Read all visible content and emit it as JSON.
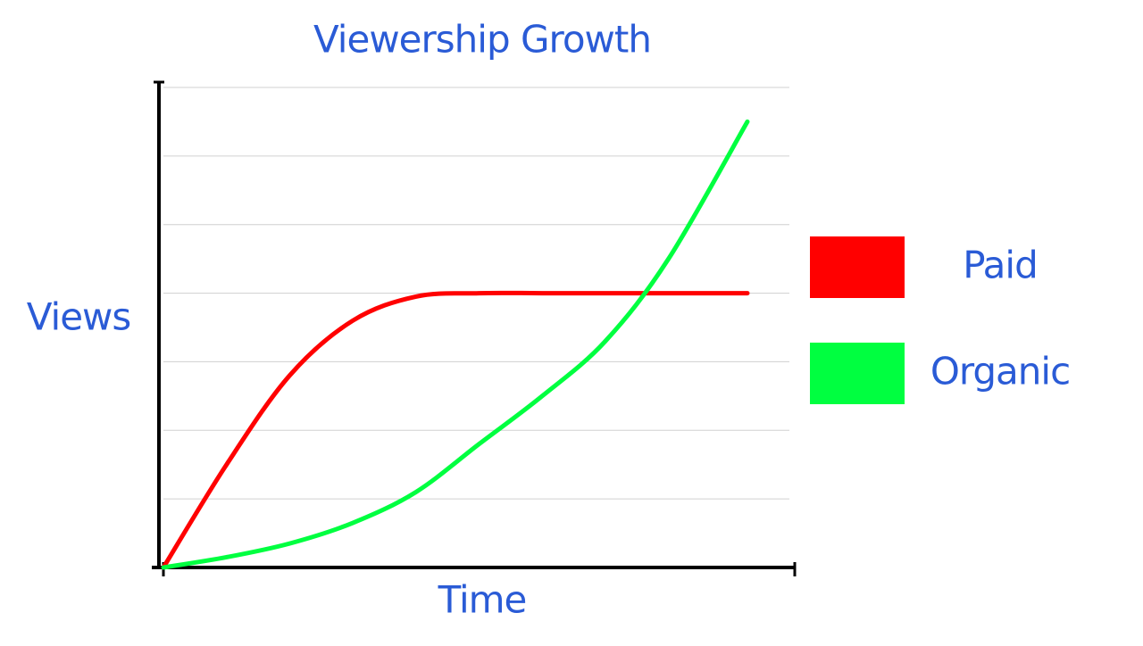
{
  "chart_data": {
    "type": "line",
    "title": "Viewership Growth",
    "x_label": "Time",
    "y_label": "Views",
    "x": [
      0,
      1,
      2,
      3,
      4,
      5,
      6,
      7,
      8,
      9.25
    ],
    "xlim": [
      0,
      10
    ],
    "ylim": [
      0,
      7
    ],
    "yticks": [
      1,
      2,
      3,
      4,
      5,
      6,
      7
    ],
    "grid": true,
    "legend": "right",
    "series": [
      {
        "name": "Paid",
        "color": "#ff0000",
        "values": [
          0,
          1.5,
          2.8,
          3.6,
          3.95,
          4.0,
          4.0,
          4.0,
          4.0,
          4.0
        ]
      },
      {
        "name": "Organic",
        "color": "#00ff40",
        "values": [
          0,
          0.15,
          0.35,
          0.65,
          1.1,
          1.8,
          2.5,
          3.3,
          4.5,
          6.5
        ]
      }
    ]
  }
}
